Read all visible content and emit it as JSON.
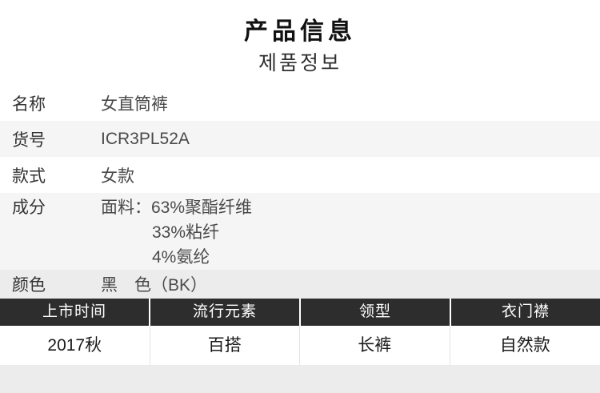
{
  "header": {
    "title": "产品信息",
    "subtitle": "제품정보"
  },
  "spec_table": {
    "rows": [
      {
        "label": "名称",
        "value": "女直筒裤"
      },
      {
        "label": "货号",
        "value": "ICR3PL52A"
      },
      {
        "label": "款式",
        "value": "女款"
      },
      {
        "label": "成分",
        "lines": [
          "面料：63%聚酯纤维",
          "33%粘纤",
          "4%氨纶"
        ]
      },
      {
        "label": "颜色",
        "value": "黑　色（BK）"
      }
    ]
  },
  "attribute_table": {
    "columns": [
      {
        "header": "上市时间",
        "value": "2017秋"
      },
      {
        "header": "流行元素",
        "value": "百搭"
      },
      {
        "header": "领型",
        "value": "长裤"
      },
      {
        "header": "衣门襟",
        "value": "自然款"
      }
    ]
  },
  "colors": {
    "header_bar_bg": "#2d2d2d",
    "row_alt_bg": "#f5f5f5",
    "color_row_bg": "#ececec",
    "title_text": "#111111",
    "body_text": "#4a4a4a"
  }
}
